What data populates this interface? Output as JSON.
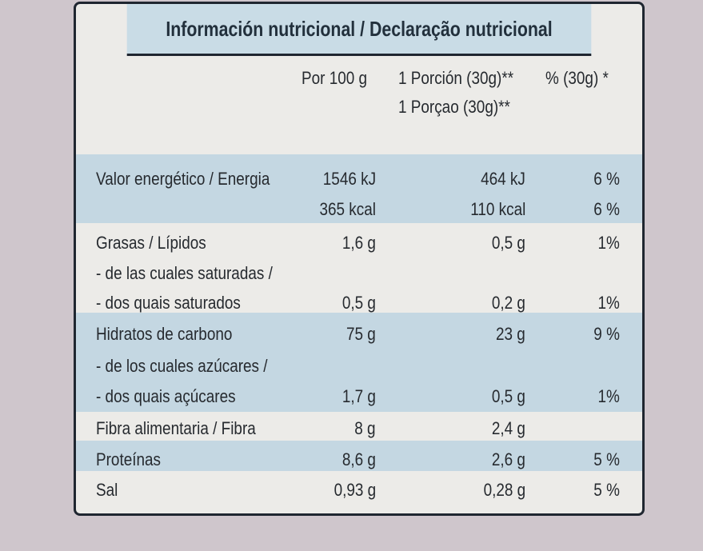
{
  "title": "Información nutricional / Declaração nutricional",
  "columns": {
    "per100": "Por 100 g",
    "portion_es": "1 Porción (30g)**",
    "portion_pt": "1 Porçao (30g)**",
    "percent": "% (30g) *"
  },
  "rows": {
    "energy": {
      "label": "Valor energético / Energia",
      "per100": "1546 kJ",
      "portion": "464 kJ",
      "percent": "6 %"
    },
    "energy_kcal": {
      "per100": "365 kcal",
      "portion": "110 kcal",
      "percent": "6 %"
    },
    "fat": {
      "label": "Grasas / Lípidos",
      "per100": "1,6 g",
      "portion": "0,5 g",
      "percent": "1%"
    },
    "saturated": {
      "label1": "- de las cuales saturadas /",
      "label2": "- dos quais saturados",
      "per100": "0,5 g",
      "portion": "0,2 g",
      "percent": "1%"
    },
    "carbs": {
      "label": "Hidratos de carbono",
      "per100": "75 g",
      "portion": "23 g",
      "percent": "9 %"
    },
    "sugars": {
      "label1": "- de los cuales azúcares /",
      "label2": "- dos quais açúcares",
      "per100": "1,7 g",
      "portion": "0,5 g",
      "percent": "1%"
    },
    "fibre": {
      "label": "Fibra alimentaria / Fibra",
      "per100": "8 g",
      "portion": "2,4 g"
    },
    "protein": {
      "label": "Proteínas",
      "per100": "8,6 g",
      "portion": "2,6 g",
      "percent": "5 %"
    },
    "salt": {
      "label": "Sal",
      "per100": "0,93 g",
      "portion": "0,28 g",
      "percent": "5 %"
    }
  }
}
